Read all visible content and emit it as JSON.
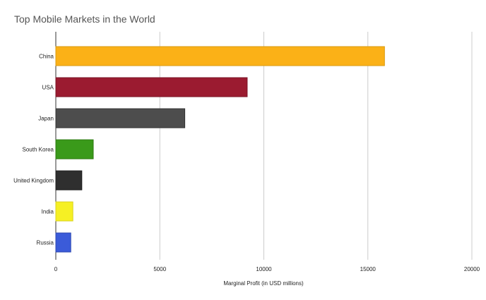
{
  "chart_data": {
    "type": "bar",
    "orientation": "horizontal",
    "title": "Top Mobile Markets in the World",
    "xlabel": "Marginal Profit (in USD millions)",
    "ylabel": "",
    "xlim": [
      0,
      20000
    ],
    "xticks": [
      0,
      5000,
      10000,
      15000,
      20000
    ],
    "grid": true,
    "legend": "none",
    "categories": [
      "China",
      "USA",
      "Japan",
      "South Korea",
      "United Kingdom",
      "India",
      "Russia"
    ],
    "values": [
      15800,
      9200,
      6200,
      1800,
      1250,
      820,
      720
    ],
    "colors": [
      "#fbb117",
      "#9b1b30",
      "#4d4d4d",
      "#3a9a1a",
      "#2f2f2f",
      "#f6f024",
      "#3b5bd9"
    ],
    "stroke_colors": [
      "#d99a10",
      "#7a1426",
      "#333333",
      "#2c7a12",
      "#1f1f1f",
      "#d8d21c",
      "#2c47b0"
    ]
  }
}
